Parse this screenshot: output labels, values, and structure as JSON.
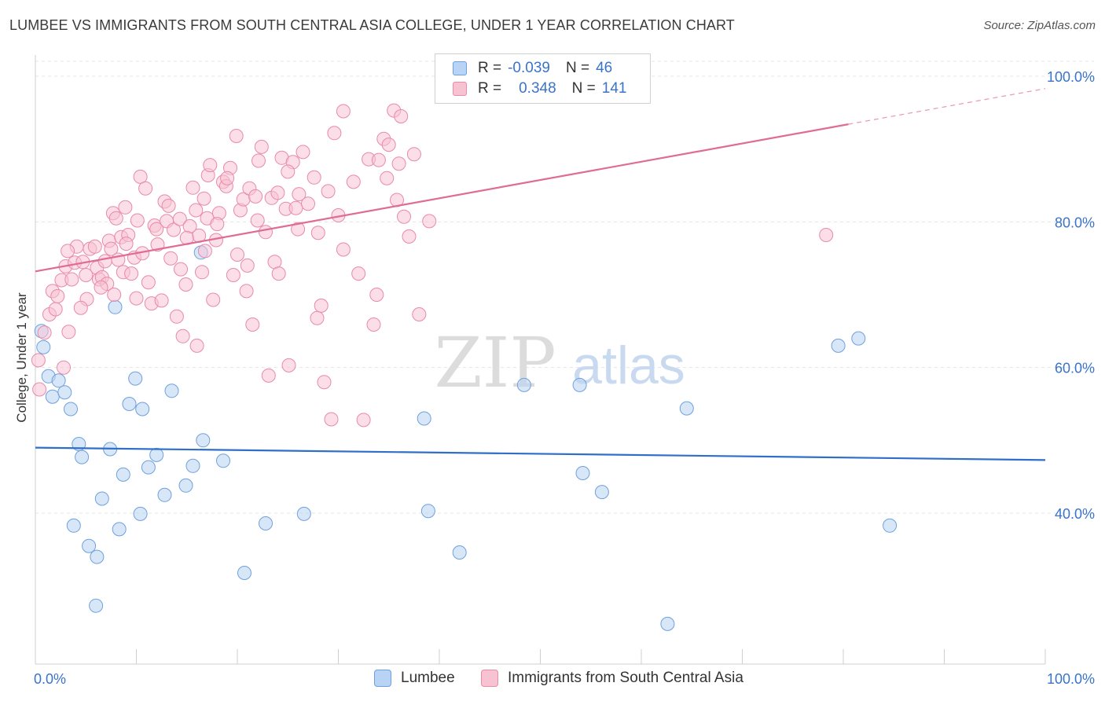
{
  "title": "LUMBEE VS IMMIGRANTS FROM SOUTH CENTRAL ASIA COLLEGE, UNDER 1 YEAR CORRELATION CHART",
  "source": "Source: ZipAtlas.com",
  "watermark": {
    "zip": "ZIP",
    "atlas": "atlas"
  },
  "legend": {
    "rows": [
      {
        "r_label": "R =",
        "r_value": "-0.039",
        "n_label": "N =",
        "n_value": "46",
        "fill": "#b8d3f3",
        "stroke": "#6fa0de"
      },
      {
        "r_label": "R =",
        "r_value": "0.348",
        "n_label": "N =",
        "n_value": "141",
        "fill": "#f7c3d3",
        "stroke": "#e88aa9"
      }
    ]
  },
  "bottom_legend": [
    {
      "label": "Lumbee",
      "fill": "#b8d3f3",
      "stroke": "#6fa0de"
    },
    {
      "label": "Immigrants from South Central Asia",
      "fill": "#f7c3d3",
      "stroke": "#e88aa9"
    }
  ],
  "chart_data": {
    "type": "scatter",
    "title": "LUMBEE VS IMMIGRANTS FROM SOUTH CENTRAL ASIA COLLEGE, UNDER 1 YEAR CORRELATION CHART",
    "xlabel": "",
    "ylabel": "College, Under 1 year",
    "xlim": [
      0,
      100
    ],
    "ylim": [
      20,
      102
    ],
    "x_tick_labels": [
      {
        "value": 0,
        "label": "0.0%"
      },
      {
        "value": 100,
        "label": "100.0%"
      }
    ],
    "y_tick_labels": [
      {
        "value": 40,
        "label": "40.0%"
      },
      {
        "value": 60,
        "label": "60.0%"
      },
      {
        "value": 80,
        "label": "80.0%"
      },
      {
        "value": 100,
        "label": "100.0%"
      }
    ],
    "grid": true,
    "series": [
      {
        "name": "Lumbee",
        "color": "#6fa0de",
        "fill": "#b8d3f3",
        "line_color": "#2f6fc9",
        "trend": {
          "x0": 0,
          "y0": 49.0,
          "x1": 100,
          "y1": 47.3,
          "dash_from": null
        },
        "points": [
          [
            0.6,
            65.0
          ],
          [
            0.8,
            62.8
          ],
          [
            1.3,
            58.8
          ],
          [
            1.7,
            56.0
          ],
          [
            2.3,
            58.2
          ],
          [
            2.9,
            56.6
          ],
          [
            3.5,
            54.3
          ],
          [
            3.8,
            38.3
          ],
          [
            4.3,
            49.5
          ],
          [
            4.6,
            47.7
          ],
          [
            5.3,
            35.5
          ],
          [
            6.1,
            34.0
          ],
          [
            6.0,
            27.3
          ],
          [
            6.6,
            42.0
          ],
          [
            7.4,
            48.8
          ],
          [
            7.9,
            68.3
          ],
          [
            8.3,
            37.8
          ],
          [
            8.7,
            45.3
          ],
          [
            9.3,
            55.0
          ],
          [
            9.9,
            58.5
          ],
          [
            10.6,
            54.3
          ],
          [
            10.4,
            39.9
          ],
          [
            11.2,
            46.3
          ],
          [
            12.0,
            48.0
          ],
          [
            12.8,
            42.5
          ],
          [
            13.5,
            56.8
          ],
          [
            14.9,
            43.8
          ],
          [
            15.6,
            46.5
          ],
          [
            16.4,
            75.8
          ],
          [
            16.6,
            50.0
          ],
          [
            18.6,
            47.2
          ],
          [
            20.7,
            31.8
          ],
          [
            22.8,
            38.6
          ],
          [
            26.6,
            39.9
          ],
          [
            38.5,
            53.0
          ],
          [
            38.9,
            40.3
          ],
          [
            42.0,
            34.6
          ],
          [
            48.4,
            57.6
          ],
          [
            53.9,
            57.6
          ],
          [
            54.2,
            45.5
          ],
          [
            56.1,
            42.9
          ],
          [
            62.6,
            24.8
          ],
          [
            64.5,
            54.4
          ],
          [
            79.5,
            63.0
          ],
          [
            81.5,
            64.0
          ],
          [
            84.6,
            38.3
          ]
        ]
      },
      {
        "name": "Immigrants from South Central Asia",
        "color": "#e88aa9",
        "fill": "#f7c3d3",
        "line_color": "#e06b94",
        "trend": {
          "x0": 0,
          "y0": 73.2,
          "x1": 100,
          "y1": 98.3,
          "dash_from": 80.5
        },
        "points": [
          [
            0.3,
            61.0
          ],
          [
            0.4,
            57.0
          ],
          [
            0.9,
            64.8
          ],
          [
            1.4,
            67.3
          ],
          [
            1.7,
            70.5
          ],
          [
            2.0,
            68.0
          ],
          [
            2.2,
            69.8
          ],
          [
            2.6,
            72.0
          ],
          [
            3.0,
            73.9
          ],
          [
            3.3,
            64.9
          ],
          [
            3.6,
            72.1
          ],
          [
            3.9,
            74.4
          ],
          [
            4.1,
            76.6
          ],
          [
            4.7,
            74.5
          ],
          [
            5.0,
            72.7
          ],
          [
            5.1,
            69.4
          ],
          [
            5.4,
            76.3
          ],
          [
            5.9,
            76.6
          ],
          [
            6.1,
            73.7
          ],
          [
            6.3,
            72.1
          ],
          [
            6.6,
            72.4
          ],
          [
            6.9,
            74.6
          ],
          [
            7.1,
            71.5
          ],
          [
            7.3,
            77.4
          ],
          [
            7.5,
            76.3
          ],
          [
            7.7,
            81.2
          ],
          [
            8.0,
            80.5
          ],
          [
            8.2,
            74.8
          ],
          [
            8.5,
            77.9
          ],
          [
            8.7,
            73.1
          ],
          [
            8.9,
            82.0
          ],
          [
            9.2,
            78.2
          ],
          [
            9.5,
            72.9
          ],
          [
            9.8,
            75.1
          ],
          [
            10.1,
            80.2
          ],
          [
            10.4,
            86.2
          ],
          [
            10.6,
            75.7
          ],
          [
            10.9,
            84.6
          ],
          [
            11.2,
            71.7
          ],
          [
            11.5,
            68.8
          ],
          [
            11.8,
            79.5
          ],
          [
            12.1,
            76.9
          ],
          [
            12.5,
            69.2
          ],
          [
            12.8,
            82.8
          ],
          [
            13.0,
            80.1
          ],
          [
            13.4,
            75.0
          ],
          [
            13.7,
            78.9
          ],
          [
            14.0,
            67.0
          ],
          [
            14.3,
            80.4
          ],
          [
            14.6,
            64.3
          ],
          [
            14.9,
            71.4
          ],
          [
            15.3,
            79.4
          ],
          [
            15.6,
            84.7
          ],
          [
            15.9,
            81.6
          ],
          [
            16.2,
            78.1
          ],
          [
            16.5,
            73.1
          ],
          [
            16.7,
            83.2
          ],
          [
            17.1,
            86.4
          ],
          [
            17.3,
            87.8
          ],
          [
            17.6,
            69.3
          ],
          [
            17.9,
            77.5
          ],
          [
            18.2,
            81.2
          ],
          [
            18.6,
            85.5
          ],
          [
            18.9,
            84.9
          ],
          [
            19.3,
            87.4
          ],
          [
            19.6,
            72.7
          ],
          [
            19.9,
            91.8
          ],
          [
            20.3,
            81.6
          ],
          [
            20.6,
            83.1
          ],
          [
            20.9,
            70.5
          ],
          [
            21.2,
            84.6
          ],
          [
            21.5,
            65.9
          ],
          [
            21.8,
            83.5
          ],
          [
            22.1,
            88.4
          ],
          [
            22.4,
            90.3
          ],
          [
            22.8,
            78.6
          ],
          [
            23.1,
            58.9
          ],
          [
            23.4,
            83.3
          ],
          [
            23.7,
            74.5
          ],
          [
            24.1,
            72.9
          ],
          [
            24.4,
            88.8
          ],
          [
            24.8,
            81.8
          ],
          [
            25.1,
            60.3
          ],
          [
            25.5,
            88.2
          ],
          [
            25.8,
            81.9
          ],
          [
            26.1,
            83.8
          ],
          [
            26.5,
            89.6
          ],
          [
            27.6,
            86.1
          ],
          [
            27.9,
            66.8
          ],
          [
            28.3,
            68.5
          ],
          [
            28.6,
            58.0
          ],
          [
            29.0,
            84.2
          ],
          [
            29.3,
            52.9
          ],
          [
            29.6,
            92.2
          ],
          [
            30.0,
            80.9
          ],
          [
            30.5,
            95.2
          ],
          [
            31.5,
            85.5
          ],
          [
            32.0,
            72.9
          ],
          [
            33.0,
            88.6
          ],
          [
            33.5,
            65.9
          ],
          [
            34.0,
            88.5
          ],
          [
            34.5,
            91.4
          ],
          [
            35.0,
            90.6
          ],
          [
            35.5,
            95.3
          ],
          [
            36.0,
            88.0
          ],
          [
            36.5,
            80.7
          ],
          [
            37.0,
            78.0
          ],
          [
            38.0,
            67.3
          ],
          [
            39.0,
            80.1
          ],
          [
            16.0,
            63.0
          ],
          [
            17.0,
            80.5
          ],
          [
            21.0,
            74.0
          ],
          [
            24.0,
            84.0
          ],
          [
            28.0,
            78.5
          ],
          [
            32.5,
            52.8
          ],
          [
            36.2,
            94.5
          ],
          [
            6.5,
            71.0
          ],
          [
            9.0,
            77.0
          ],
          [
            12.0,
            79.0
          ],
          [
            13.2,
            82.2
          ],
          [
            14.4,
            73.5
          ],
          [
            15.0,
            77.8
          ],
          [
            16.8,
            76.0
          ],
          [
            18.0,
            79.7
          ],
          [
            19.0,
            86.0
          ],
          [
            20.0,
            75.5
          ],
          [
            22.0,
            80.2
          ],
          [
            25.0,
            86.9
          ],
          [
            26.0,
            79.0
          ],
          [
            27.0,
            82.5
          ],
          [
            30.5,
            76.2
          ],
          [
            33.8,
            70.0
          ],
          [
            34.8,
            86.0
          ],
          [
            35.8,
            83.0
          ],
          [
            37.5,
            89.3
          ],
          [
            4.5,
            68.2
          ],
          [
            2.8,
            60.0
          ],
          [
            3.2,
            76.0
          ],
          [
            7.8,
            70.0
          ],
          [
            10.0,
            69.5
          ],
          [
            78.3,
            78.2
          ]
        ]
      }
    ]
  }
}
